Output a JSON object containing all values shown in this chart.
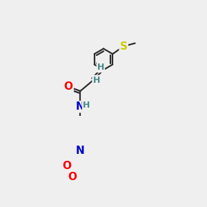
{
  "background_color": "#efefef",
  "bond_color": "#2c2c2c",
  "atom_colors": {
    "O": "#ff0000",
    "N": "#0000cc",
    "S": "#cccc00",
    "H": "#4a8888",
    "C": "#2c2c2c"
  },
  "bond_width": 1.6,
  "figsize": [
    3.0,
    3.0
  ],
  "dpi": 100
}
